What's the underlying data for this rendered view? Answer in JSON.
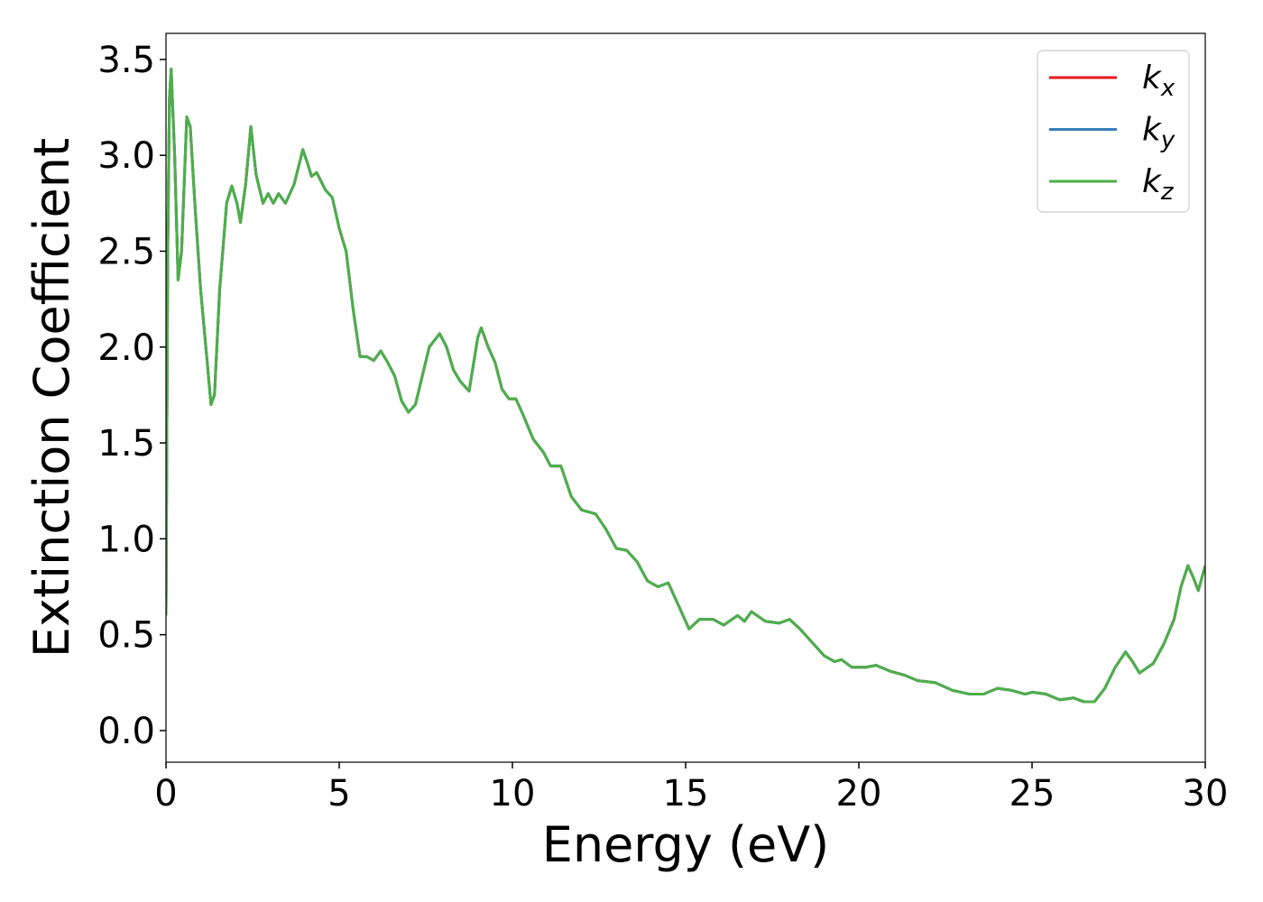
{
  "chart_data": {
    "type": "line",
    "xlabel": "Energy (eV)",
    "ylabel": "Extinction Coefficient",
    "x": [
      0,
      0.05,
      0.1,
      0.15,
      0.25,
      0.35,
      0.45,
      0.6,
      0.7,
      0.85,
      1.0,
      1.15,
      1.3,
      1.4,
      1.55,
      1.75,
      1.9,
      2.05,
      2.15,
      2.3,
      2.45,
      2.6,
      2.8,
      2.95,
      3.1,
      3.25,
      3.45,
      3.7,
      3.95,
      4.1,
      4.2,
      4.35,
      4.6,
      4.8,
      5.0,
      5.2,
      5.4,
      5.6,
      5.8,
      6.0,
      6.2,
      6.4,
      6.6,
      6.8,
      7.0,
      7.2,
      7.4,
      7.6,
      7.9,
      8.1,
      8.3,
      8.5,
      8.75,
      9.0,
      9.1,
      9.3,
      9.5,
      9.7,
      9.9,
      10.1,
      10.3,
      10.6,
      10.9,
      11.1,
      11.4,
      11.7,
      12.0,
      12.4,
      12.7,
      13.0,
      13.3,
      13.6,
      13.9,
      14.2,
      14.5,
      14.8,
      15.1,
      15.4,
      15.8,
      16.1,
      16.5,
      16.7,
      16.9,
      17.3,
      17.7,
      18.0,
      18.3,
      18.7,
      19.0,
      19.3,
      19.5,
      19.8,
      20.2,
      20.5,
      20.9,
      21.3,
      21.7,
      22.2,
      22.7,
      23.2,
      23.6,
      24.0,
      24.4,
      24.8,
      25.0,
      25.4,
      25.8,
      26.2,
      26.5,
      26.8,
      27.1,
      27.4,
      27.7,
      27.9,
      28.1,
      28.5,
      28.8,
      29.1,
      29.3,
      29.5,
      29.65,
      29.8,
      30.0
    ],
    "series": [
      {
        "name": "kx",
        "color": "#e41a1c",
        "values": [
          0.6,
          2.5,
          3.3,
          3.45,
          3.0,
          2.35,
          2.5,
          3.2,
          3.15,
          2.7,
          2.3,
          2.0,
          1.7,
          1.75,
          2.3,
          2.75,
          2.84,
          2.75,
          2.65,
          2.85,
          3.15,
          2.9,
          2.75,
          2.8,
          2.75,
          2.8,
          2.75,
          2.85,
          3.03,
          2.95,
          2.89,
          2.91,
          2.82,
          2.78,
          2.62,
          2.5,
          2.2,
          1.95,
          1.95,
          1.93,
          1.98,
          1.92,
          1.85,
          1.72,
          1.66,
          1.7,
          1.85,
          2.0,
          2.07,
          2.0,
          1.88,
          1.82,
          1.77,
          2.05,
          2.1,
          2.0,
          1.92,
          1.78,
          1.73,
          1.73,
          1.65,
          1.52,
          1.45,
          1.38,
          1.38,
          1.22,
          1.15,
          1.13,
          1.05,
          0.95,
          0.94,
          0.88,
          0.78,
          0.75,
          0.77,
          0.65,
          0.53,
          0.58,
          0.58,
          0.55,
          0.6,
          0.57,
          0.62,
          0.57,
          0.56,
          0.58,
          0.53,
          0.45,
          0.39,
          0.36,
          0.37,
          0.33,
          0.33,
          0.34,
          0.31,
          0.29,
          0.26,
          0.25,
          0.21,
          0.19,
          0.19,
          0.22,
          0.21,
          0.19,
          0.2,
          0.19,
          0.16,
          0.17,
          0.15,
          0.15,
          0.22,
          0.33,
          0.41,
          0.36,
          0.3,
          0.35,
          0.45,
          0.58,
          0.75,
          0.86,
          0.8,
          0.73,
          0.86
        ]
      },
      {
        "name": "ky",
        "color": "#377eb8",
        "values": [
          0.6,
          2.5,
          3.3,
          3.45,
          3.0,
          2.35,
          2.5,
          3.2,
          3.15,
          2.7,
          2.3,
          2.0,
          1.7,
          1.75,
          2.3,
          2.75,
          2.84,
          2.75,
          2.65,
          2.85,
          3.15,
          2.9,
          2.75,
          2.8,
          2.75,
          2.8,
          2.75,
          2.85,
          3.03,
          2.95,
          2.89,
          2.91,
          2.82,
          2.78,
          2.62,
          2.5,
          2.2,
          1.95,
          1.95,
          1.93,
          1.98,
          1.92,
          1.85,
          1.72,
          1.66,
          1.7,
          1.85,
          2.0,
          2.07,
          2.0,
          1.88,
          1.82,
          1.77,
          2.05,
          2.1,
          2.0,
          1.92,
          1.78,
          1.73,
          1.73,
          1.65,
          1.52,
          1.45,
          1.38,
          1.38,
          1.22,
          1.15,
          1.13,
          1.05,
          0.95,
          0.94,
          0.88,
          0.78,
          0.75,
          0.77,
          0.65,
          0.53,
          0.58,
          0.58,
          0.55,
          0.6,
          0.57,
          0.62,
          0.57,
          0.56,
          0.58,
          0.53,
          0.45,
          0.39,
          0.36,
          0.37,
          0.33,
          0.33,
          0.34,
          0.31,
          0.29,
          0.26,
          0.25,
          0.21,
          0.19,
          0.19,
          0.22,
          0.21,
          0.19,
          0.2,
          0.19,
          0.16,
          0.17,
          0.15,
          0.15,
          0.22,
          0.33,
          0.41,
          0.36,
          0.3,
          0.35,
          0.45,
          0.58,
          0.75,
          0.86,
          0.8,
          0.73,
          0.86
        ]
      },
      {
        "name": "kz",
        "color": "#4daf4a",
        "values": [
          0.6,
          2.5,
          3.3,
          3.45,
          3.0,
          2.35,
          2.5,
          3.2,
          3.15,
          2.7,
          2.3,
          2.0,
          1.7,
          1.75,
          2.3,
          2.75,
          2.84,
          2.75,
          2.65,
          2.85,
          3.15,
          2.9,
          2.75,
          2.8,
          2.75,
          2.8,
          2.75,
          2.85,
          3.03,
          2.95,
          2.89,
          2.91,
          2.82,
          2.78,
          2.62,
          2.5,
          2.2,
          1.95,
          1.95,
          1.93,
          1.98,
          1.92,
          1.85,
          1.72,
          1.66,
          1.7,
          1.85,
          2.0,
          2.07,
          2.0,
          1.88,
          1.82,
          1.77,
          2.05,
          2.1,
          2.0,
          1.92,
          1.78,
          1.73,
          1.73,
          1.65,
          1.52,
          1.45,
          1.38,
          1.38,
          1.22,
          1.15,
          1.13,
          1.05,
          0.95,
          0.94,
          0.88,
          0.78,
          0.75,
          0.77,
          0.65,
          0.53,
          0.58,
          0.58,
          0.55,
          0.6,
          0.57,
          0.62,
          0.57,
          0.56,
          0.58,
          0.53,
          0.45,
          0.39,
          0.36,
          0.37,
          0.33,
          0.33,
          0.34,
          0.31,
          0.29,
          0.26,
          0.25,
          0.21,
          0.19,
          0.19,
          0.22,
          0.21,
          0.19,
          0.2,
          0.19,
          0.16,
          0.17,
          0.15,
          0.15,
          0.22,
          0.33,
          0.41,
          0.36,
          0.3,
          0.35,
          0.45,
          0.58,
          0.75,
          0.86,
          0.8,
          0.73,
          0.86
        ]
      }
    ],
    "xlim": [
      0,
      30
    ],
    "xticks": [
      0,
      5,
      10,
      15,
      20,
      25,
      30
    ],
    "ylim": [
      -0.165,
      3.636
    ],
    "yticks": [
      {
        "value": 0,
        "label": "0.0"
      },
      0.5,
      {
        "value": 1,
        "label": "1.0"
      },
      1.5,
      {
        "value": 2,
        "label": "2.0"
      },
      2.5,
      {
        "value": 3,
        "label": "3.0"
      },
      3.5
    ],
    "legend": "upper right",
    "grid": false
  }
}
